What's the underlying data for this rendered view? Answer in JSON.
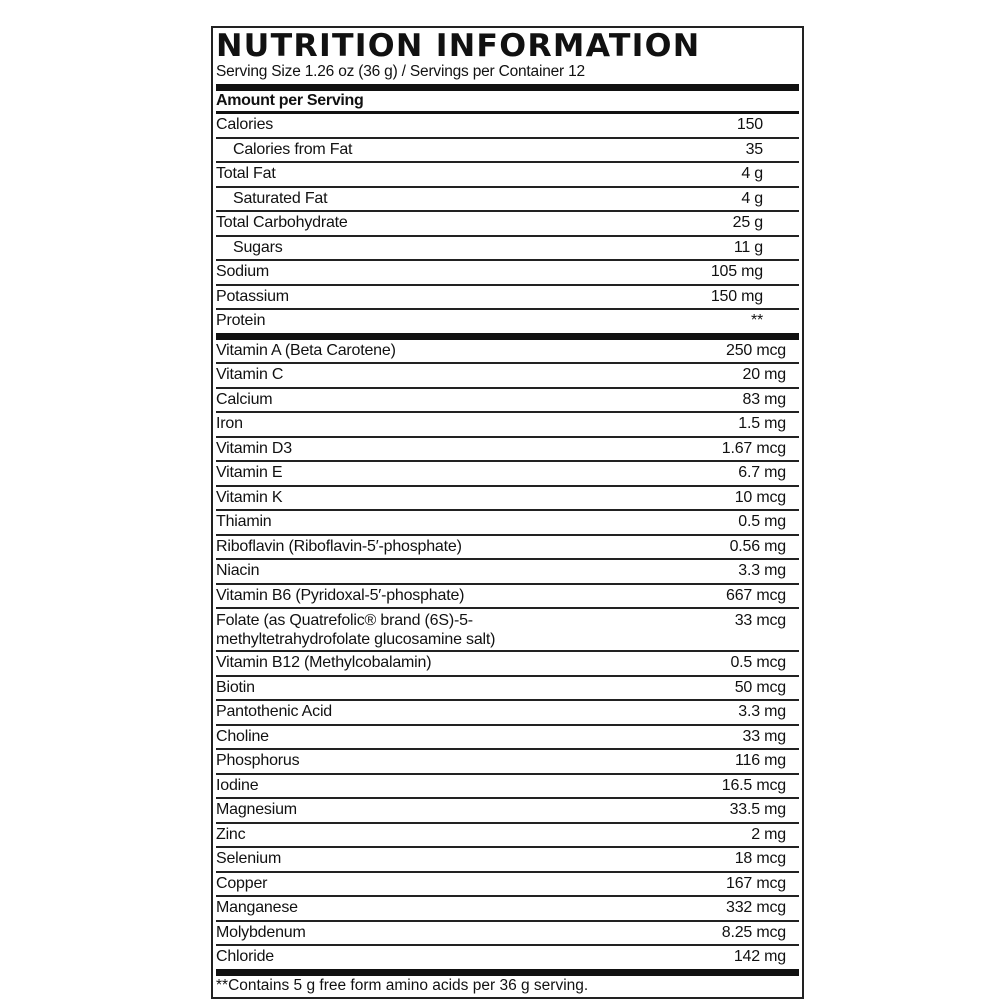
{
  "title": "NUTRITION INFORMATION",
  "serving": "Serving Size 1.26 oz (36 g) / Servings per Container 12",
  "amount_header": "Amount per Serving",
  "section1": [
    {
      "name": "Calories",
      "value": "150",
      "indent": false
    },
    {
      "name": "Calories from Fat",
      "value": "35",
      "indent": true
    },
    {
      "name": "Total Fat",
      "value": "4 g",
      "indent": false
    },
    {
      "name": "Saturated Fat",
      "value": "4 g",
      "indent": true
    },
    {
      "name": "Total Carbohydrate",
      "value": "25 g",
      "indent": false
    },
    {
      "name": "Sugars",
      "value": "11 g",
      "indent": true
    },
    {
      "name": "Sodium",
      "value": "105 mg",
      "indent": false
    },
    {
      "name": "Potassium",
      "value": "150 mg",
      "indent": false
    },
    {
      "name": "Protein",
      "value": "**",
      "indent": false
    }
  ],
  "section2": [
    {
      "name": "Vitamin A (Beta Carotene)",
      "value": "250 mcg"
    },
    {
      "name": "Vitamin C",
      "value": "20 mg"
    },
    {
      "name": "Calcium",
      "value": "83 mg"
    },
    {
      "name": "Iron",
      "value": "1.5 mg"
    },
    {
      "name": "Vitamin D3",
      "value": "1.67 mcg"
    },
    {
      "name": "Vitamin E",
      "value": "6.7 mg"
    },
    {
      "name": "Vitamin K",
      "value": "10 mcg"
    },
    {
      "name": "Thiamin",
      "value": "0.5 mg"
    },
    {
      "name": "Riboflavin (Riboflavin-5′-phosphate)",
      "value": "0.56 mg"
    },
    {
      "name": "Niacin",
      "value": "3.3 mg"
    },
    {
      "name": "Vitamin B6 (Pyridoxal-5′-phosphate)",
      "value": "667 mcg"
    },
    {
      "name": "Folate (as Quatrefolic® brand (6S)-5-methyltetrahydrofolate glucosamine salt)",
      "value": "33 mcg",
      "tall": true
    },
    {
      "name": "Vitamin B12 (Methylcobalamin)",
      "value": "0.5 mcg"
    },
    {
      "name": "Biotin",
      "value": "50 mcg"
    },
    {
      "name": "Pantothenic Acid",
      "value": "3.3 mg"
    },
    {
      "name": "Choline",
      "value": "33 mg"
    },
    {
      "name": "Phosphorus",
      "value": "116 mg"
    },
    {
      "name": "Iodine",
      "value": "16.5 mcg"
    },
    {
      "name": "Magnesium",
      "value": "33.5 mg"
    },
    {
      "name": "Zinc",
      "value": "2 mg"
    },
    {
      "name": "Selenium",
      "value": "18 mcg"
    },
    {
      "name": "Copper",
      "value": "167 mcg"
    },
    {
      "name": "Manganese",
      "value": "332 mcg"
    },
    {
      "name": "Molybdenum",
      "value": "8.25 mcg"
    },
    {
      "name": "Chloride",
      "value": "142 mg"
    }
  ],
  "footnote": "**Contains 5 g free form amino acids per 36 g serving."
}
